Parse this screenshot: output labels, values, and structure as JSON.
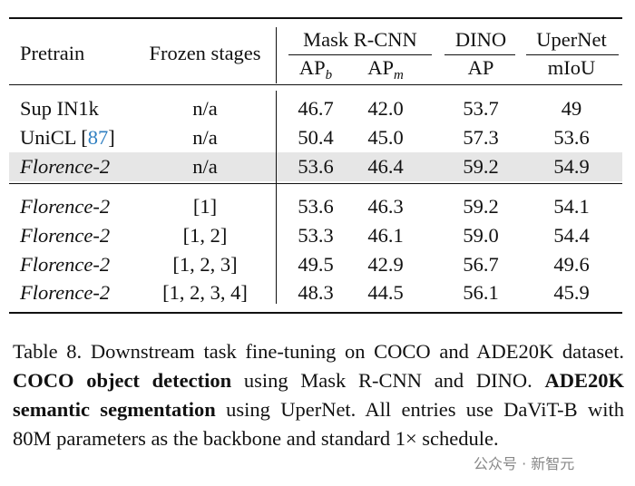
{
  "table": {
    "header": {
      "pretrain": "Pretrain",
      "frozen": "Frozen stages",
      "groups": [
        {
          "title": "Mask R-CNN",
          "columns": [
            {
              "text": "AP",
              "sub": "b"
            },
            {
              "text": "AP",
              "sub": "m"
            }
          ]
        },
        {
          "title": "DINO",
          "columns": [
            {
              "text": "AP"
            }
          ]
        },
        {
          "title": "UperNet",
          "columns": [
            {
              "text": "mIoU"
            }
          ]
        }
      ]
    },
    "groups": [
      [
        {
          "pretrain": [
            {
              "text": "Sup IN1k"
            }
          ],
          "frozen": "n/a",
          "values": [
            "46.7",
            "42.0",
            "53.7",
            "49"
          ]
        },
        {
          "pretrain": [
            {
              "text": "UniCL ["
            },
            {
              "text": "87",
              "color": "#2f7fc1"
            },
            {
              "text": "]"
            }
          ],
          "frozen": "n/a",
          "values": [
            "50.4",
            "45.0",
            "57.3",
            "53.6"
          ]
        },
        {
          "pretrain": [
            {
              "text": "Florence-2"
            }
          ],
          "italic": true,
          "highlight": true,
          "frozen": "n/a",
          "values": [
            "53.6",
            "46.4",
            "59.2",
            "54.9"
          ]
        }
      ],
      [
        {
          "pretrain": [
            {
              "text": "Florence-2"
            }
          ],
          "italic": true,
          "frozen": "[1]",
          "values": [
            "53.6",
            "46.3",
            "59.2",
            "54.1"
          ]
        },
        {
          "pretrain": [
            {
              "text": "Florence-2"
            }
          ],
          "italic": true,
          "frozen": "[1, 2]",
          "values": [
            "53.3",
            "46.1",
            "59.0",
            "54.4"
          ]
        },
        {
          "pretrain": [
            {
              "text": "Florence-2"
            }
          ],
          "italic": true,
          "frozen": "[1, 2, 3]",
          "values": [
            "49.5",
            "42.9",
            "56.7",
            "49.6"
          ]
        },
        {
          "pretrain": [
            {
              "text": "Florence-2"
            }
          ],
          "italic": true,
          "frozen": "[1, 2, 3, 4]",
          "values": [
            "48.3",
            "44.5",
            "56.1",
            "45.9"
          ]
        }
      ]
    ]
  },
  "caption": [
    {
      "text": "Table 8.  Downstream task fine-tuning on COCO and ADE20K dataset. "
    },
    {
      "text": "COCO object detection",
      "bold": true
    },
    {
      "text": " using Mask R-CNN and DINO. "
    },
    {
      "text": "ADE20K semantic segmentation",
      "bold": true
    },
    {
      "text": " using UperNet. All entries use DaViT-B with 80M parameters as the backbone and standard 1× schedule."
    }
  ],
  "watermark": "公众号 · 新智元"
}
